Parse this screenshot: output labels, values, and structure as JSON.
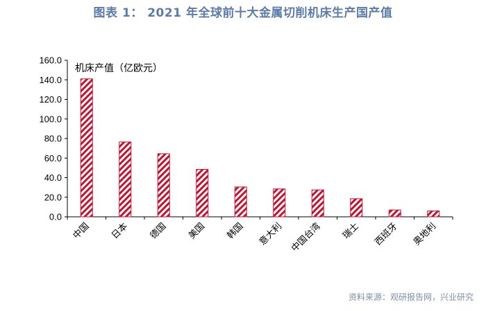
{
  "title": "图表 1： 2021 年全球前十大金属切削机床生产国产值",
  "source": "资料来源：观研报告网，兴业研究",
  "chart_data": {
    "type": "bar",
    "categories": [
      "中国",
      "日本",
      "德国",
      "美国",
      "韩国",
      "意大利",
      "中国台湾",
      "瑞士",
      "西班牙",
      "奥地利"
    ],
    "values": [
      141.0,
      76.5,
      64.5,
      48.5,
      30.5,
      28.5,
      27.5,
      18.5,
      7.0,
      6.0
    ],
    "ylabel": "机床产值（亿欧元）",
    "ylim": [
      0,
      160
    ],
    "yticks": [
      "0.0",
      "20.0",
      "40.0",
      "60.0",
      "80.0",
      "100.0",
      "120.0",
      "140.0",
      "160.0"
    ],
    "bar_color": "#c8102e",
    "bar_pattern": "diagonal-hatch",
    "grid": false,
    "legend": "none"
  }
}
